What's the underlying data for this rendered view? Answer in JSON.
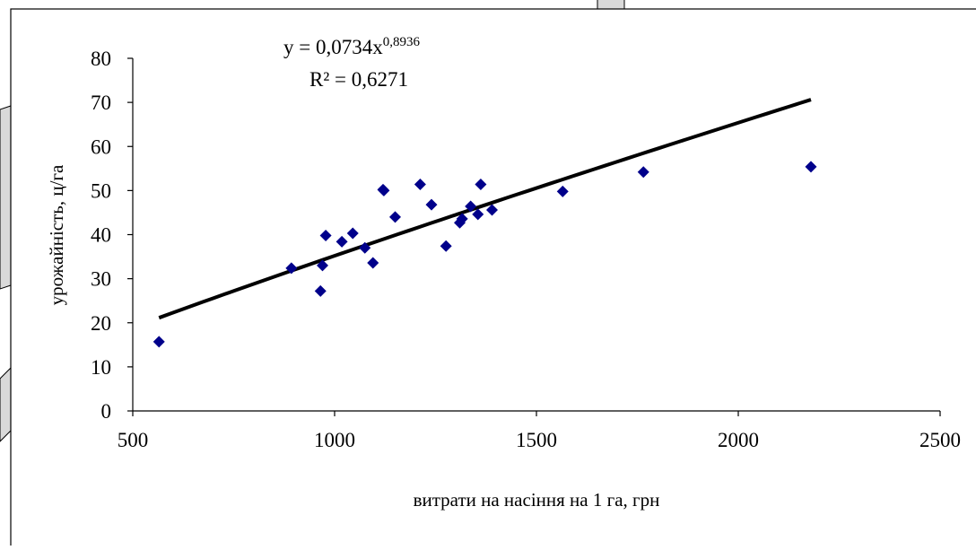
{
  "chart_data": {
    "type": "scatter",
    "xlabel": "витрати на насіння на 1 га, грн",
    "ylabel": "урожайність, ц/га",
    "xlim": [
      500,
      2500
    ],
    "ylim": [
      0,
      80
    ],
    "x_ticks": [
      "500",
      "1000",
      "1500",
      "2000",
      "2500"
    ],
    "y_ticks": [
      "0",
      "10",
      "20",
      "30",
      "40",
      "50",
      "60",
      "70",
      "80"
    ],
    "grid": false,
    "legend": "none",
    "marker_color": "#00008b",
    "trendline_color": "#000000",
    "trendline": {
      "type": "power",
      "coefficient": 0.0734,
      "exponent": 0.8936,
      "x_range": [
        565,
        2180
      ],
      "equation_prefix": "y = 0,0734x",
      "equation_exponent": "0,8936",
      "r2_label": "R² = 0,6271"
    },
    "points": [
      {
        "x": 565,
        "y": 15.7
      },
      {
        "x": 893,
        "y": 32.4
      },
      {
        "x": 965,
        "y": 27.2
      },
      {
        "x": 970,
        "y": 33.0
      },
      {
        "x": 978,
        "y": 39.8
      },
      {
        "x": 1018,
        "y": 38.4
      },
      {
        "x": 1045,
        "y": 40.3
      },
      {
        "x": 1075,
        "y": 37.0
      },
      {
        "x": 1095,
        "y": 33.6
      },
      {
        "x": 1120,
        "y": 50.2
      },
      {
        "x": 1122,
        "y": 50.0
      },
      {
        "x": 1150,
        "y": 44.0
      },
      {
        "x": 1212,
        "y": 51.4
      },
      {
        "x": 1240,
        "y": 46.8
      },
      {
        "x": 1276,
        "y": 37.4
      },
      {
        "x": 1310,
        "y": 42.7
      },
      {
        "x": 1316,
        "y": 43.6
      },
      {
        "x": 1337,
        "y": 46.4
      },
      {
        "x": 1355,
        "y": 44.6
      },
      {
        "x": 1362,
        "y": 51.4
      },
      {
        "x": 1390,
        "y": 45.6
      },
      {
        "x": 1565,
        "y": 49.8
      },
      {
        "x": 1765,
        "y": 54.2
      },
      {
        "x": 2180,
        "y": 55.4
      }
    ]
  }
}
